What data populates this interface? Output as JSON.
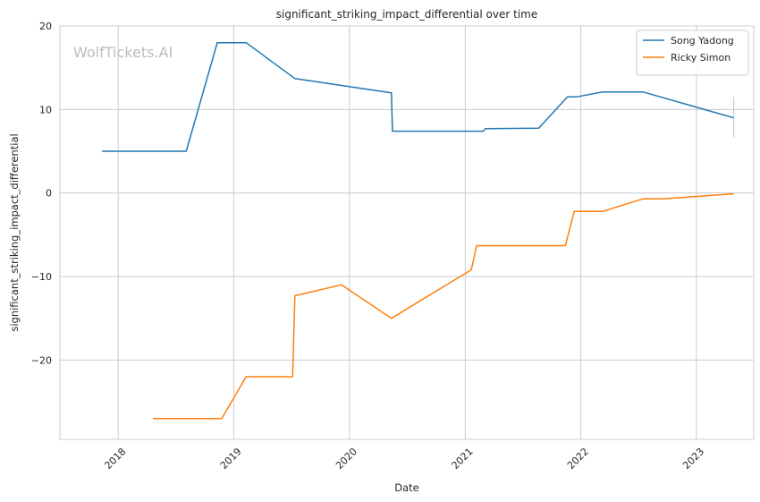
{
  "chart_data": {
    "type": "line",
    "title": "significant_striking_impact_differential over time",
    "xlabel": "Date",
    "ylabel": "significant_striking_impact_differential",
    "watermark": "WolfTickets.AI",
    "x_ticks": [
      "2018",
      "2019",
      "2020",
      "2021",
      "2022",
      "2023"
    ],
    "y_ticks": [
      20,
      10,
      0,
      -10,
      -20
    ],
    "xlim": [
      "2017-07-01",
      "2023-07-01"
    ],
    "ylim": [
      -29.5,
      20
    ],
    "grid": true,
    "legend_position": "top-right",
    "series": [
      {
        "name": "Song Yadong",
        "color": "#1f77b4",
        "points": [
          [
            "2017-11-11",
            5.0
          ],
          [
            "2018-08-04",
            5.0
          ],
          [
            "2018-11-10",
            18.0
          ],
          [
            "2019-02-09",
            18.0
          ],
          [
            "2019-07-13",
            13.7
          ],
          [
            "2020-05-13",
            12.0
          ],
          [
            "2020-05-16",
            7.4
          ],
          [
            "2021-02-27",
            7.4
          ],
          [
            "2021-03-06",
            7.7
          ],
          [
            "2021-08-21",
            7.75
          ],
          [
            "2021-11-20",
            11.5
          ],
          [
            "2021-12-18",
            11.5
          ],
          [
            "2022-03-12",
            12.1
          ],
          [
            "2022-07-16",
            12.1
          ],
          [
            "2023-04-29",
            9.0
          ]
        ]
      },
      {
        "name": "Ricky Simon",
        "color": "#ff7f0e",
        "points": [
          [
            "2018-04-21",
            -27.0
          ],
          [
            "2018-11-24",
            -27.0
          ],
          [
            "2019-02-09",
            -22.0
          ],
          [
            "2019-07-06",
            -22.0
          ],
          [
            "2019-07-13",
            -12.3
          ],
          [
            "2019-12-07",
            -11.0
          ],
          [
            "2020-05-13",
            -15.0
          ],
          [
            "2021-01-20",
            -9.2
          ],
          [
            "2021-02-06",
            -6.3
          ],
          [
            "2021-11-13",
            -6.3
          ],
          [
            "2021-12-11",
            -2.2
          ],
          [
            "2022-03-12",
            -2.2
          ],
          [
            "2022-07-16",
            -0.7
          ],
          [
            "2022-09-17",
            -0.7
          ],
          [
            "2023-04-29",
            -0.1
          ]
        ]
      }
    ]
  }
}
